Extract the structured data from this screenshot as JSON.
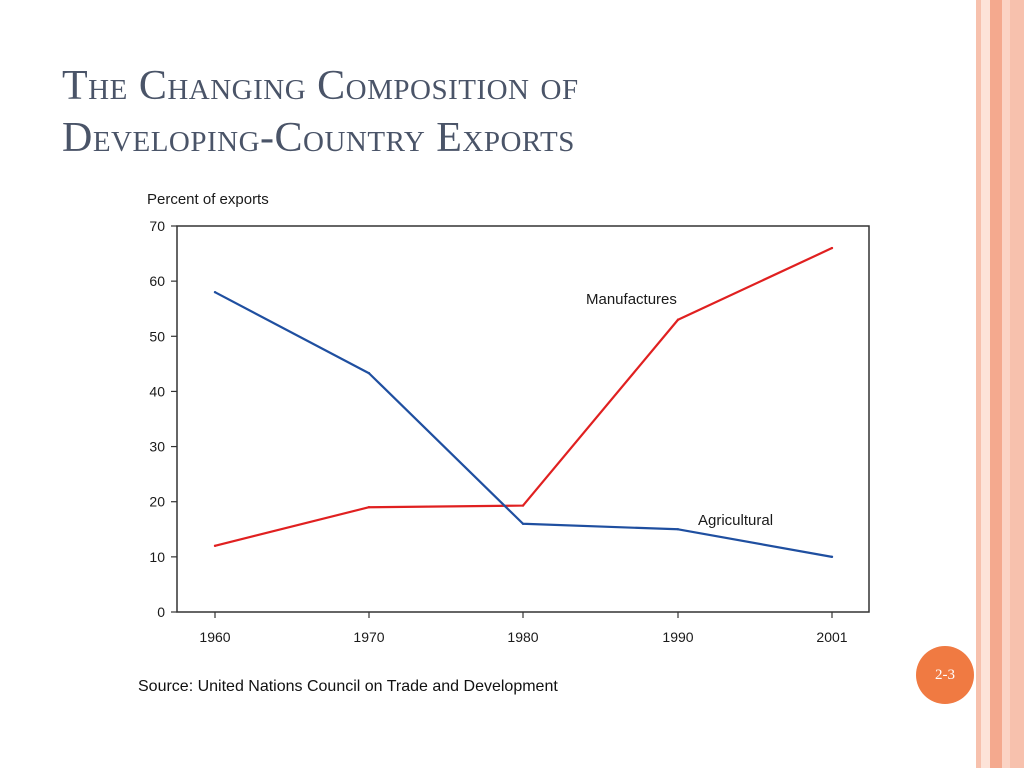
{
  "slide": {
    "title_line1": "The Changing Composition of",
    "title_line2": "Developing-Country Exports",
    "source": "Source: United Nations Council on Trade and Development",
    "page_number": "2-3"
  },
  "theme": {
    "border_colors": [
      "#f7c1ad",
      "#fde3d8",
      "#f4a98e",
      "#fbd3c4",
      "#f7c1ad"
    ],
    "badge_color": "#f07a42",
    "title_color": "#4a5468"
  },
  "chart_data": {
    "type": "line",
    "title": "",
    "xlabel": "",
    "ylabel": "Percent of exports",
    "x": [
      "1960",
      "1970",
      "1980",
      "1990",
      "2001"
    ],
    "ylim": [
      0,
      70
    ],
    "yticks": [
      0,
      10,
      20,
      30,
      40,
      50,
      60,
      70
    ],
    "grid": false,
    "series": [
      {
        "name": "Manufactures",
        "color": "#e02020",
        "values": [
          12,
          19,
          19.3,
          53,
          66
        ]
      },
      {
        "name": "Agricultural",
        "color": "#1f4fa0",
        "values": [
          58,
          43.3,
          16,
          15,
          10
        ]
      }
    ]
  }
}
